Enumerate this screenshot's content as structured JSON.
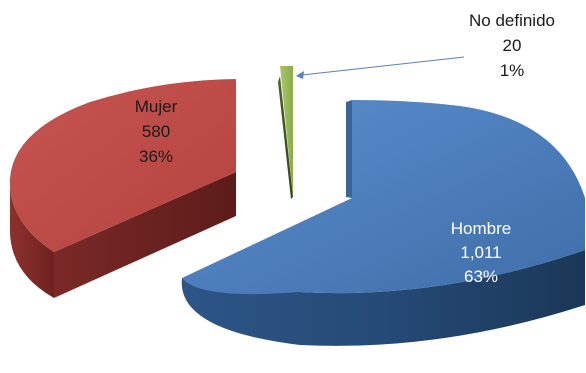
{
  "chart_data": {
    "type": "pie",
    "style": "3d-exploded",
    "slices": [
      {
        "name": "Hombre",
        "value": 1011,
        "value_label": "1,011",
        "percent_label": "63%",
        "color": "#4F81BD"
      },
      {
        "name": "Mujer",
        "value": 580,
        "value_label": "580",
        "percent_label": "36%",
        "color": "#C0504D"
      },
      {
        "name": "No definido",
        "value": 20,
        "value_label": "20",
        "percent_label": "1%",
        "color": "#9BBB59"
      }
    ]
  }
}
